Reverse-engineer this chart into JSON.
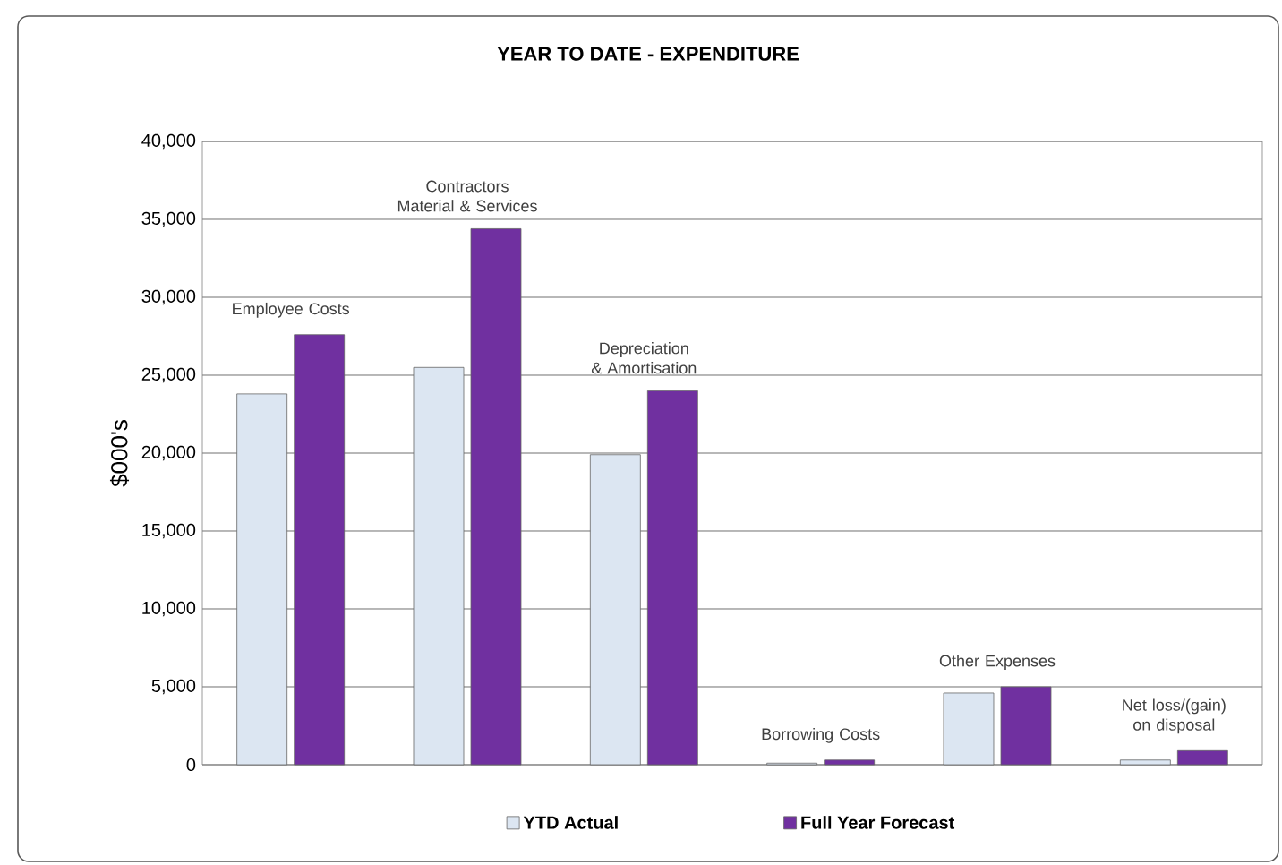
{
  "chart_data": {
    "type": "bar",
    "title": "YEAR TO DATE - EXPENDITURE",
    "ylabel": "$000's",
    "categories": [
      "Employee Costs",
      "Contractors Material & Services",
      "Depreciation & Amortisation",
      "Borrowing Costs",
      "Other Expenses",
      "Net loss/(gain) on disposal"
    ],
    "series": [
      {
        "name": "YTD Actual",
        "color": "#dce6f2",
        "values": [
          23800,
          25500,
          19900,
          100,
          4600,
          300
        ]
      },
      {
        "name": "Full Year Forecast",
        "color": "#7030a0",
        "values": [
          27600,
          34400,
          24000,
          300,
          5000,
          900
        ]
      }
    ],
    "ylim": [
      0,
      40000
    ],
    "yticks": [
      0,
      {
        "value": 5000,
        "label": "5,000"
      },
      {
        "value": 10000,
        "label": "10,000"
      },
      {
        "value": 15000,
        "label": "15,000"
      },
      {
        "value": 20000,
        "label": "20,000"
      },
      {
        "value": 25000,
        "label": "25,000"
      },
      {
        "value": 30000,
        "label": "30,000"
      },
      {
        "value": 35000,
        "label": "35,000"
      },
      {
        "value": 40000,
        "label": "40,000"
      }
    ],
    "grid": "y",
    "legend": "bottom"
  }
}
